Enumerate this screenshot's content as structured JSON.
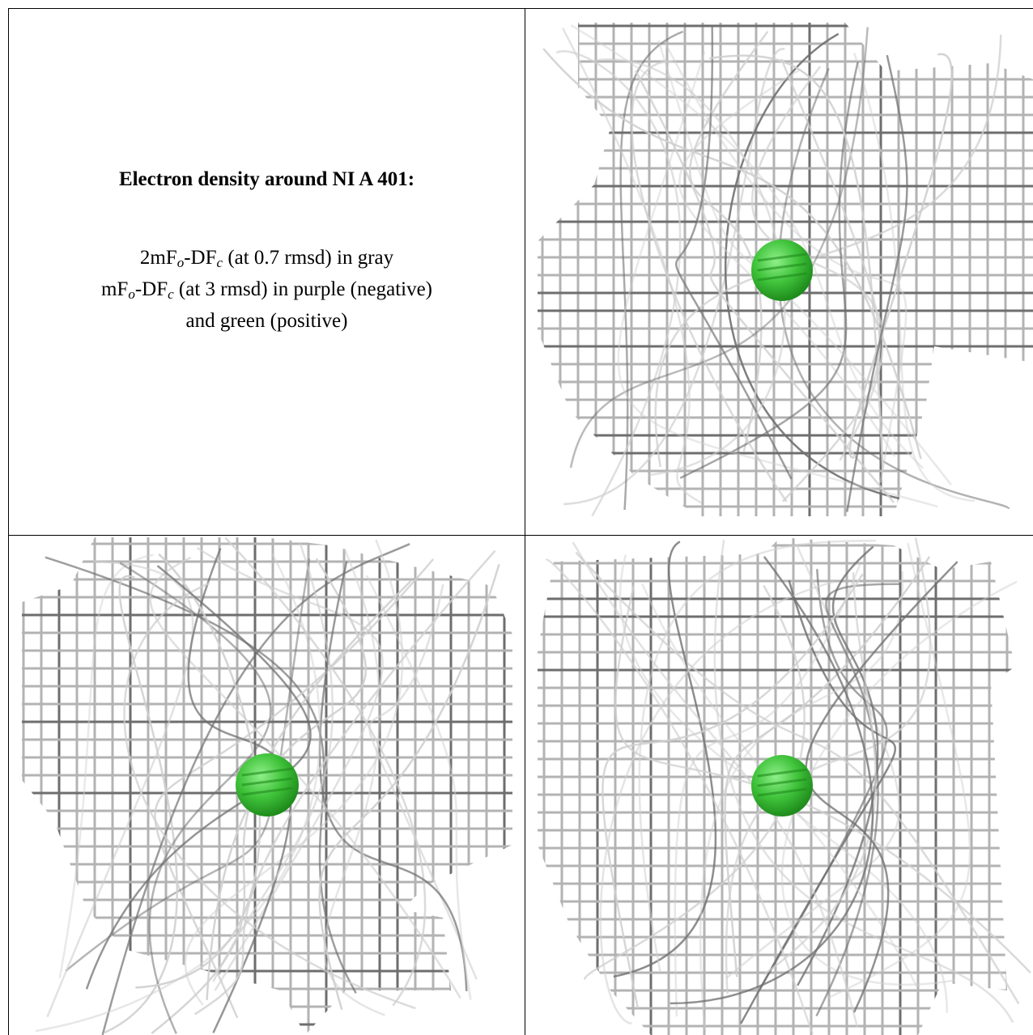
{
  "caption": {
    "title": "Electron density around NI A 401:",
    "map1": {
      "prefix": "2mF",
      "o": "o",
      "mid": "-DF",
      "c": "c",
      "suffix": " (at 0.7 rmsd) in gray"
    },
    "map2": {
      "prefix": "mF",
      "o": "o",
      "mid": "-DF",
      "c": "c",
      "suffix": " (at 3 rmsd) in purple (negative)"
    },
    "map2_cont": "and green (positive)"
  },
  "colors": {
    "mesh": "#b3b3b3",
    "mesh_dark": "#6e6e6e",
    "atom": "#3fc23a",
    "atom_dark": "#1f8c1c",
    "background": "#ffffff"
  },
  "views": [
    {
      "id": "view-1",
      "atom_name": "NI A 401"
    },
    {
      "id": "view-2",
      "atom_name": "NI A 401"
    },
    {
      "id": "view-3",
      "atom_name": "NI A 401"
    }
  ]
}
